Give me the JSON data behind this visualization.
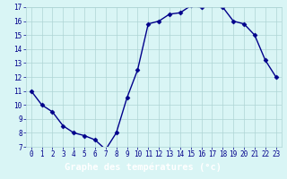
{
  "x": [
    0,
    1,
    2,
    3,
    4,
    5,
    6,
    7,
    8,
    9,
    10,
    11,
    12,
    13,
    14,
    15,
    16,
    17,
    18,
    19,
    20,
    21,
    22,
    23
  ],
  "y": [
    11,
    10,
    9.5,
    8.5,
    8.0,
    7.8,
    7.5,
    6.8,
    8.0,
    10.5,
    12.5,
    15.8,
    16.0,
    16.5,
    16.6,
    17.1,
    17.0,
    17.2,
    17.0,
    16.0,
    15.8,
    15.0,
    13.2,
    12.0
  ],
  "line_color": "#00008B",
  "marker": "D",
  "marker_size": 2.5,
  "bg_color": "#d9f5f5",
  "grid_color": "#aed4d4",
  "xlabel": "Graphe des températures (°c)",
  "xlabel_color": "white",
  "xlabel_bg": "#2020cc",
  "ylim": [
    7,
    17
  ],
  "yticks": [
    7,
    8,
    9,
    10,
    11,
    12,
    13,
    14,
    15,
    16,
    17
  ],
  "xticks": [
    0,
    1,
    2,
    3,
    4,
    5,
    6,
    7,
    8,
    9,
    10,
    11,
    12,
    13,
    14,
    15,
    16,
    17,
    18,
    19,
    20,
    21,
    22,
    23
  ],
  "tick_color": "#00008B",
  "tick_fontsize": 5.5,
  "xlabel_fontsize": 7.5,
  "linewidth": 1.0
}
